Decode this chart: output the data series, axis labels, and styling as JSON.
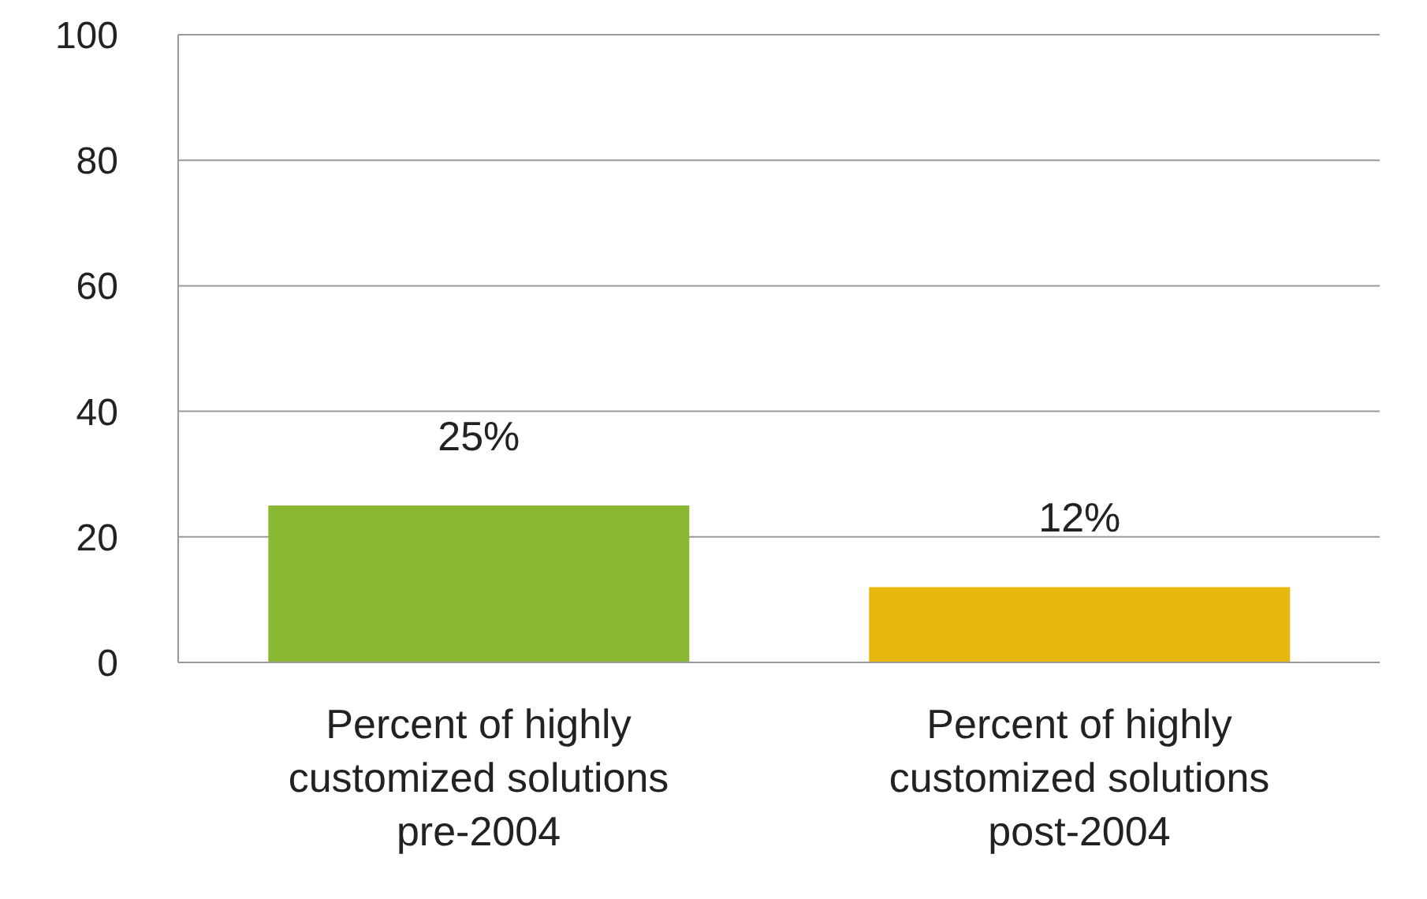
{
  "chart_data": {
    "type": "bar",
    "categories": [
      "Percent of highly customized solutions pre-2004",
      "Percent of highly customized solutions post-2004"
    ],
    "values": [
      25,
      12
    ],
    "colors": [
      "#8ab833",
      "#e6b70e"
    ],
    "value_labels": [
      "25%",
      "12%"
    ],
    "ylim": [
      0,
      100
    ],
    "yticks": [
      0,
      20,
      40,
      60,
      80,
      100
    ],
    "grid": "y"
  }
}
